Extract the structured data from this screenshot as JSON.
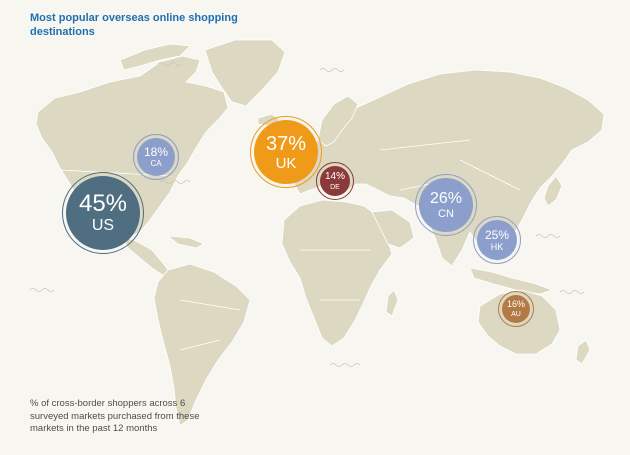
{
  "title": "Most popular overseas online shopping destinations",
  "caption": "% of cross-border shoppers across 6 surveyed markets purchased from these markets in the past 12 months",
  "colors": {
    "background": "#f7f6f0",
    "land": "#ddd8c2",
    "border": "#ffffff",
    "title": "#1f6fb2"
  },
  "destinations": [
    {
      "code": "US",
      "value": 45,
      "label": "45%",
      "color": "#4f6e82"
    },
    {
      "code": "UK",
      "value": 37,
      "label": "37%",
      "color": "#f09a1a"
    },
    {
      "code": "CN",
      "value": 26,
      "label": "26%",
      "color": "#8c9fcc"
    },
    {
      "code": "HK",
      "value": 25,
      "label": "25%",
      "color": "#8c9fcc"
    },
    {
      "code": "CA",
      "value": 18,
      "label": "18%",
      "color": "#8c9fcc"
    },
    {
      "code": "AU",
      "value": 16,
      "label": "16%",
      "color": "#b37a45"
    },
    {
      "code": "DE",
      "value": 14,
      "label": "14%",
      "color": "#8b3a3a"
    }
  ]
}
